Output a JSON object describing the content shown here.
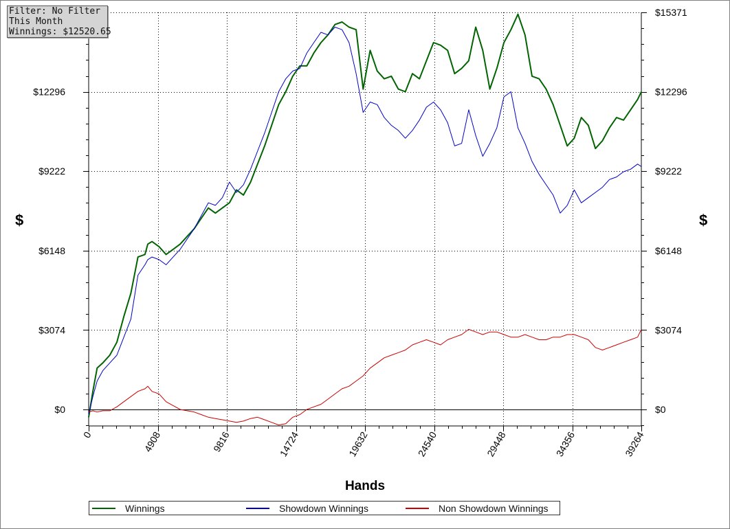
{
  "info": {
    "filter": "Filter: No Filter",
    "period": "This Month",
    "winnings": "Winnings: $12520.65"
  },
  "chart_data": {
    "type": "line",
    "title": "",
    "xlabel": "Hands",
    "ylabel": "$",
    "ylabel_right": "$",
    "xlim": [
      0,
      39264
    ],
    "ylim": [
      -700,
      15371
    ],
    "xticks": [
      0,
      4908,
      9816,
      14724,
      19632,
      24540,
      29448,
      34356,
      39264
    ],
    "xtick_labels": [
      "0",
      "4908",
      "9816",
      "14724",
      "19632",
      "24540",
      "29448",
      "34356",
      "39264"
    ],
    "yticks": [
      0,
      3074,
      6148,
      9222,
      12296,
      15371
    ],
    "ytick_labels_left": [
      "$0",
      "$3074",
      "$6148",
      "$9222",
      "$12296",
      ""
    ],
    "ytick_labels_right": [
      "$0",
      "$3074",
      "$6148",
      "$9222",
      "$12296",
      "$15371"
    ],
    "grid": true,
    "legend_position": "bottom",
    "series": [
      {
        "name": "Winnings",
        "color": "#006400",
        "x": [
          0,
          300,
          600,
          1000,
          1500,
          2000,
          2500,
          3000,
          3500,
          4000,
          4200,
          4500,
          5000,
          5500,
          6000,
          6500,
          7000,
          7500,
          8000,
          8500,
          9000,
          9500,
          10000,
          10500,
          11000,
          11500,
          12000,
          12500,
          13000,
          13500,
          14000,
          14500,
          15000,
          15500,
          16000,
          16500,
          17000,
          17500,
          18000,
          18500,
          19000,
          19500,
          20000,
          20500,
          21000,
          21500,
          22000,
          22500,
          23000,
          23500,
          24000,
          24500,
          25000,
          25500,
          26000,
          26500,
          27000,
          27500,
          28000,
          28500,
          29000,
          29500,
          30000,
          30500,
          31000,
          31500,
          32000,
          32500,
          33000,
          33500,
          34000,
          34500,
          35000,
          35500,
          36000,
          36500,
          37000,
          37500,
          38000,
          38500,
          39000,
          39264
        ],
        "y": [
          -300,
          700,
          1600,
          1800,
          2100,
          2600,
          3600,
          4500,
          5900,
          6000,
          6400,
          6500,
          6300,
          6000,
          6200,
          6400,
          6700,
          7000,
          7400,
          7800,
          7600,
          7800,
          8000,
          8500,
          8300,
          8800,
          9500,
          10200,
          11000,
          11800,
          12300,
          12900,
          13300,
          13300,
          13800,
          14200,
          14500,
          14900,
          15000,
          14800,
          14700,
          12400,
          13900,
          13100,
          12800,
          12900,
          12400,
          12300,
          13000,
          12800,
          13500,
          14200,
          14100,
          13900,
          13000,
          13200,
          13500,
          14800,
          13900,
          12400,
          13200,
          14200,
          14700,
          15300,
          14500,
          12900,
          12800,
          12400,
          11800,
          11000,
          10200,
          10500,
          11300,
          11000,
          10100,
          10400,
          10900,
          11300,
          11200,
          11600,
          12000,
          12300
        ]
      },
      {
        "name": "Showdown Winnings",
        "color": "#0000c8",
        "x": [
          0,
          300,
          600,
          1000,
          1500,
          2000,
          2500,
          3000,
          3500,
          4000,
          4200,
          4500,
          5000,
          5500,
          6000,
          6500,
          7000,
          7500,
          8000,
          8500,
          9000,
          9500,
          10000,
          10500,
          11000,
          11500,
          12000,
          12500,
          13000,
          13500,
          14000,
          14500,
          15000,
          15500,
          16000,
          16500,
          17000,
          17500,
          18000,
          18500,
          19000,
          19500,
          20000,
          20500,
          21000,
          21500,
          22000,
          22500,
          23000,
          23500,
          24000,
          24500,
          25000,
          25500,
          26000,
          26500,
          27000,
          27500,
          28000,
          28500,
          29000,
          29500,
          30000,
          30500,
          31000,
          31500,
          32000,
          32500,
          33000,
          33500,
          34000,
          34500,
          35000,
          35500,
          36000,
          36500,
          37000,
          37500,
          38000,
          38500,
          39000,
          39264
        ],
        "y": [
          -200,
          500,
          1100,
          1500,
          1800,
          2100,
          2800,
          3500,
          5200,
          5600,
          5800,
          5900,
          5800,
          5600,
          5900,
          6200,
          6600,
          7000,
          7500,
          8000,
          7900,
          8200,
          8800,
          8400,
          8700,
          9300,
          10000,
          10700,
          11500,
          12300,
          12800,
          13100,
          13200,
          13800,
          14200,
          14600,
          14500,
          14800,
          14700,
          14200,
          13000,
          11500,
          11900,
          11800,
          11300,
          11000,
          10800,
          10500,
          10800,
          11200,
          11700,
          11900,
          11600,
          11100,
          10200,
          10300,
          11600,
          10600,
          9800,
          10300,
          10900,
          12100,
          12300,
          10900,
          10300,
          9600,
          9100,
          8700,
          8300,
          7600,
          7900,
          8500,
          8000,
          8200,
          8400,
          8600,
          8900,
          9000,
          9200,
          9300,
          9500,
          9400
        ]
      },
      {
        "name": "Non Showdown Winnings",
        "color": "#cc0000",
        "x": [
          0,
          300,
          600,
          1000,
          1500,
          2000,
          2500,
          3000,
          3500,
          4000,
          4200,
          4500,
          5000,
          5500,
          6000,
          6500,
          7000,
          7500,
          8000,
          8500,
          9000,
          9500,
          10000,
          10500,
          11000,
          11500,
          12000,
          12500,
          13000,
          13500,
          14000,
          14500,
          15000,
          15500,
          16000,
          16500,
          17000,
          17500,
          18000,
          18500,
          19000,
          19500,
          20000,
          20500,
          21000,
          21500,
          22000,
          22500,
          23000,
          23500,
          24000,
          24500,
          25000,
          25500,
          26000,
          26500,
          27000,
          27500,
          28000,
          28500,
          29000,
          29500,
          30000,
          30500,
          31000,
          31500,
          32000,
          32500,
          33000,
          33500,
          34000,
          34500,
          35000,
          35500,
          36000,
          36500,
          37000,
          37500,
          38000,
          38500,
          39000,
          39264
        ],
        "y": [
          -100,
          -50,
          -100,
          -50,
          -50,
          100,
          300,
          500,
          700,
          800,
          900,
          700,
          600,
          300,
          150,
          0,
          -50,
          -100,
          -200,
          -300,
          -350,
          -400,
          -450,
          -500,
          -450,
          -350,
          -300,
          -400,
          -500,
          -600,
          -550,
          -300,
          -200,
          0,
          100,
          200,
          400,
          600,
          800,
          900,
          1100,
          1300,
          1600,
          1800,
          2000,
          2100,
          2200,
          2300,
          2500,
          2600,
          2700,
          2600,
          2500,
          2700,
          2800,
          2900,
          3100,
          3000,
          2900,
          3000,
          3000,
          2900,
          2800,
          2800,
          2900,
          2800,
          2700,
          2700,
          2800,
          2800,
          2900,
          2900,
          2800,
          2700,
          2400,
          2300,
          2400,
          2500,
          2600,
          2700,
          2800,
          3100
        ]
      }
    ]
  }
}
